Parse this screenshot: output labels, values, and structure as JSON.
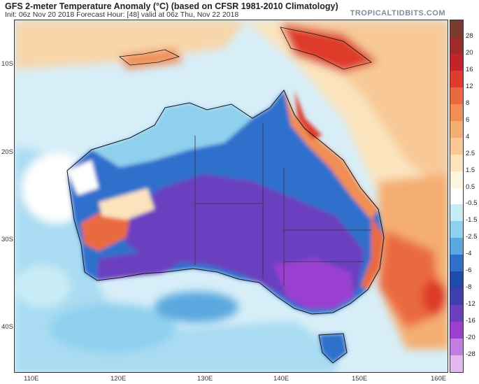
{
  "header": {
    "title": "GFS 2-meter Temperature Anomaly (°C) (based on CFSR 1981-2010 Climatology)",
    "subtitle": "Init: 06z Nov 20 2018   Forecast Hour: [48]   valid at 06z Thu, Nov 22 2018",
    "brand": "TROPICALTIDBITS.COM"
  },
  "map": {
    "region": "Australia",
    "lat_labels": [
      "10S",
      "20S",
      "30S",
      "40S"
    ],
    "lon_labels": [
      "110E",
      "120E",
      "130E",
      "140E",
      "150E",
      "160E"
    ]
  },
  "colorbar": {
    "labels": [
      "28",
      "20",
      "16",
      "12",
      "8",
      "6",
      "4",
      "2.5",
      "1.5",
      "0.5",
      "-0.5",
      "-1.5",
      "-2.5",
      "-4",
      "-6",
      "-8",
      "-12",
      "-16",
      "-20",
      "-28"
    ],
    "colors": [
      "#7a3a2e",
      "#9c2b2b",
      "#c2242a",
      "#de3b2c",
      "#ea6a3f",
      "#f08e55",
      "#f5ae71",
      "#f8c996",
      "#fbe3bd",
      "#fdf6df",
      "#ffffff",
      "#c8ecf6",
      "#8fd0ee",
      "#5aa8df",
      "#2f6fcc",
      "#1f4aa8",
      "#3f3fb0",
      "#6a3fc0",
      "#9a3fd0",
      "#c07ee0",
      "#e2b8ee"
    ]
  }
}
